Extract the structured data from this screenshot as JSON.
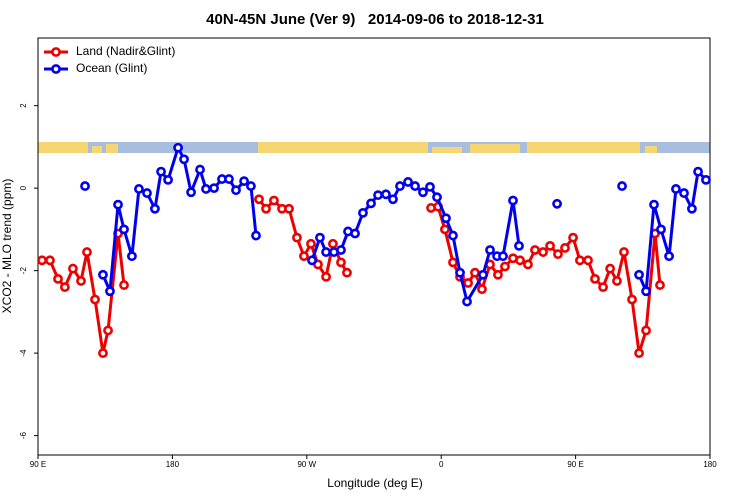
{
  "chart_data": {
    "type": "line",
    "title": "40N-45N June (Ver 9)   2014-09-06 to 2018-12-31",
    "xlabel": "Longitude (deg E)",
    "ylabel": "XCO2 - MLO trend (ppm)",
    "xlim": [
      90,
      540
    ],
    "ylim": [
      -6.47,
      3.64
    ],
    "xticks": [
      {
        "value": 90,
        "label": "90 E"
      },
      180,
      {
        "value": 270,
        "label": "90 W"
      },
      {
        "value": 360,
        "label": "0"
      },
      {
        "value": 450,
        "label": "90 E"
      },
      {
        "value": 540,
        "label": "180"
      }
    ],
    "yticks": [
      -6,
      -4,
      -2,
      0,
      2
    ],
    "legend": "top-left",
    "series": [
      {
        "name": "Land (Nadir&Glint)",
        "color": "#ee0000",
        "x": [
          92.7,
          98,
          103.4,
          108,
          113.4,
          118.8,
          122.8,
          128.2,
          133.5,
          136.9,
          143.6,
          147.6,
          null,
          238,
          242.7,
          248,
          253.4,
          258.1,
          263.4,
          268.1,
          272.8,
          277.5,
          282.9,
          287.5,
          292.9,
          296.9,
          null,
          353.2,
          357.9,
          362.5,
          367.9,
          372.6,
          378,
          382.6,
          387.3,
          392.7,
          398,
          402.7,
          408.1,
          412.8,
          418.1,
          422.8,
          428.2,
          432.9,
          438.2,
          442.9,
          448.3,
          452.9,
          458.3,
          463,
          468.4,
          473.1,
          477.7,
          482.4,
          487.8,
          492.5,
          497.2,
          503.2,
          506.5
        ],
        "values": [
          -1.75,
          -1.75,
          -2.2,
          -2.4,
          -1.95,
          -2.25,
          -1.55,
          -2.7,
          -4.0,
          -3.45,
          -1.1,
          -2.35,
          null,
          -0.27,
          -0.5,
          -0.3,
          -0.5,
          -0.5,
          -1.2,
          -1.65,
          -1.35,
          -1.85,
          -2.15,
          -1.35,
          -1.8,
          -2.05,
          null,
          -0.48,
          -0.45,
          -1.0,
          -1.8,
          -2.15,
          -2.3,
          -2.05,
          -2.45,
          -1.85,
          -2.1,
          -1.9,
          -1.7,
          -1.75,
          -1.85,
          -1.5,
          -1.55,
          -1.4,
          -1.6,
          -1.45,
          -1.2,
          -1.75,
          -1.75,
          -2.2,
          -2.4,
          -1.95,
          -2.25,
          -1.55,
          -2.7,
          -4.0,
          -3.45,
          -1.1,
          -2.35
        ]
      },
      {
        "name": "Ocean (Glint)",
        "color": "#0000ee",
        "x": [
          121.5,
          null,
          133.5,
          138.2,
          143.6,
          147.6,
          152.9,
          157.6,
          163,
          168.3,
          172.4,
          177.1,
          183.8,
          187.8,
          192.5,
          198.5,
          202.5,
          207.9,
          213.2,
          217.9,
          222.6,
          228,
          232.6,
          236,
          null,
          273.5,
          278.8,
          282.9,
          288.2,
          292.9,
          297.6,
          302.3,
          307.6,
          313,
          317.7,
          323,
          327.7,
          332.4,
          337.8,
          342.5,
          347.8,
          352.5,
          357.2,
          363.2,
          367.9,
          372.6,
          377.3,
          388,
          392.7,
          397.4,
          401.4,
          408.1,
          412.1,
          null,
          437.6,
          null,
          481.1,
          null,
          492.5,
          497.2,
          502.5,
          507.2,
          512.6,
          517.2,
          522.6,
          527.9,
          532,
          537.3
        ],
        "values": [
          0.05,
          null,
          -2.1,
          -2.5,
          -0.4,
          -1.0,
          -1.65,
          -0.02,
          -0.12,
          -0.5,
          0.4,
          0.2,
          0.98,
          0.7,
          -0.1,
          0.45,
          -0.02,
          0.0,
          0.22,
          0.22,
          -0.05,
          0.17,
          0.05,
          -1.15,
          null,
          -1.75,
          -1.2,
          -1.55,
          -1.55,
          -1.5,
          -1.05,
          -1.1,
          -0.6,
          -0.37,
          -0.17,
          -0.15,
          -0.27,
          0.05,
          0.15,
          0.05,
          -0.1,
          0.03,
          -0.22,
          -0.73,
          -1.15,
          -2.05,
          -2.75,
          -2.1,
          -1.5,
          -1.65,
          -1.65,
          -0.3,
          -1.4,
          null,
          -0.38,
          null,
          0.05,
          null,
          -2.1,
          -2.5,
          -0.4,
          -1.0,
          -1.65,
          -0.02,
          -0.12,
          -0.5,
          0.4,
          0.2
        ]
      }
    ]
  }
}
